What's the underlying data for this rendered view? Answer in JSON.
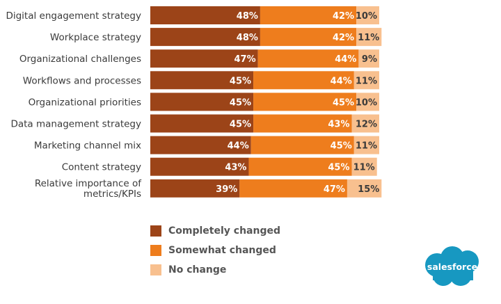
{
  "chart_data": {
    "type": "bar",
    "orientation": "horizontal",
    "stacked": true,
    "categories": [
      "Digital engagement strategy",
      "Workplace strategy",
      "Organizational challenges",
      "Workflows and processes",
      "Organizational priorities",
      "Data management strategy",
      "Marketing channel mix",
      "Content strategy",
      "Relative importance of metrics/KPIs"
    ],
    "series": [
      {
        "name": "Completely changed",
        "values": [
          48,
          48,
          47,
          45,
          45,
          45,
          44,
          43,
          39
        ],
        "color": "#9c4418",
        "label_color": "#ffffff"
      },
      {
        "name": "Somewhat changed",
        "values": [
          42,
          42,
          44,
          44,
          45,
          43,
          45,
          45,
          47
        ],
        "color": "#ee7d1d",
        "label_color": "#ffffff"
      },
      {
        "name": "No change",
        "values": [
          10,
          11,
          9,
          11,
          10,
          12,
          11,
          11,
          15
        ],
        "color": "#f8c08f",
        "label_color": "#3a3a3a"
      }
    ],
    "value_suffix": "%",
    "xlim": [
      0,
      100
    ],
    "grid": false,
    "legend_position": "bottom"
  },
  "logo": {
    "text": "salesforce",
    "color": "#1798c1"
  }
}
